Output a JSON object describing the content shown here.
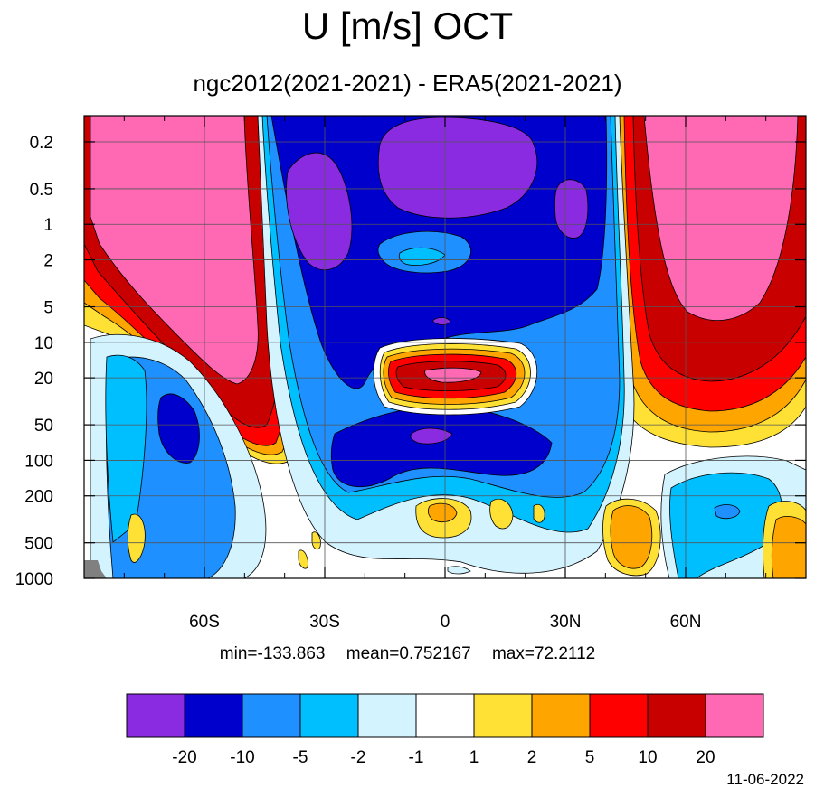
{
  "title": "U [m/s] OCT",
  "subtitle": "ngc2012(2021-2021) - ERA5(2021-2021)",
  "stats": {
    "min": "min=-133.863",
    "mean": "mean=0.752167",
    "max": "max=72.2112"
  },
  "date": "11-06-2022",
  "chart_data": {
    "type": "heatmap",
    "title": "U [m/s] OCT",
    "subtitle": "ngc2012(2021-2021) - ERA5(2021-2021)",
    "x_axis": {
      "range": [
        -90,
        90
      ],
      "ticks": [
        {
          "value": -60,
          "label": "60S"
        },
        {
          "value": -30,
          "label": "30S"
        },
        {
          "value": 0,
          "label": "0"
        },
        {
          "value": 30,
          "label": "30N"
        },
        {
          "value": 60,
          "label": "60N"
        }
      ]
    },
    "y_axis": {
      "scale": "log",
      "reversed": true,
      "range": [
        1000,
        0.12
      ],
      "ticks": [
        "0.2",
        "0.5",
        "1",
        "2",
        "5",
        "10",
        "20",
        "50",
        "100",
        "200",
        "500",
        "1000"
      ]
    },
    "grid": true,
    "colorbar": {
      "levels": [
        "-20",
        "-10",
        "-5",
        "-2",
        "-1",
        "1",
        "2",
        "5",
        "10",
        "20"
      ],
      "colors": [
        "#8a2be2",
        "#0000cd",
        "#1e90ff",
        "#00bfff",
        "#d3f3ff",
        "#ffffff",
        "#ffe135",
        "#ffa500",
        "#ff0000",
        "#c80000",
        "#ff69b4"
      ]
    },
    "missing_color": "#808080"
  }
}
